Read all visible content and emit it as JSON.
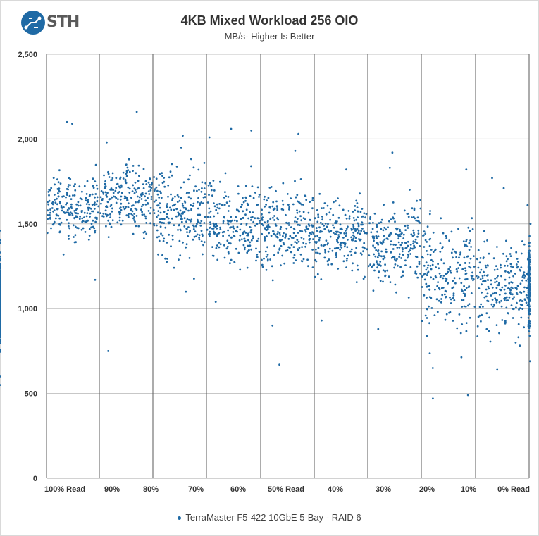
{
  "header": {
    "logo_text": "STH",
    "title": "4KB Mixed Workload  256 OIO",
    "subtitle": "MB/s- Higher Is Better"
  },
  "colors": {
    "series": "#1f6aa5",
    "grid": "#bfbfbf",
    "axis": "#a6a6a6"
  },
  "chart_data": {
    "type": "scatter",
    "title": "4KB Mixed Workload  256 OIO",
    "subtitle": "MB/s- Higher Is Better",
    "xlabel": "",
    "ylabel": "MB/s",
    "ylim": [
      0,
      2500
    ],
    "yticks": [
      0,
      500,
      1000,
      1500,
      2000,
      2500
    ],
    "ytick_labels": [
      "0",
      "500",
      "1,000",
      "1,500",
      "2,000",
      "2,500"
    ],
    "categories": [
      "100% Read",
      "90%",
      "80%",
      "70%",
      "60%",
      "50% Read",
      "40%",
      "30%",
      "20%",
      "10%",
      "0% Read"
    ],
    "grid": true,
    "legend_position": "bottom-center",
    "series": [
      {
        "name": "TerraMaster F5-422 10GbE 5-Bay - RAID 6",
        "segment_summaries": [
          {
            "category": "100% Read",
            "center": 1580,
            "spread": 130,
            "outliers": [
              2100,
              2090,
              1170
            ]
          },
          {
            "category": "90%",
            "center": 1640,
            "spread": 150,
            "outliers": [
              2160,
              1980,
              750
            ]
          },
          {
            "category": "80%",
            "center": 1560,
            "spread": 180,
            "outliers": [
              2020,
              1950,
              1100
            ]
          },
          {
            "category": "70%",
            "center": 1500,
            "spread": 170,
            "outliers": [
              2060,
              2050,
              2010,
              1040
            ]
          },
          {
            "category": "60%",
            "center": 1470,
            "spread": 170,
            "outliers": [
              2030,
              1930,
              670,
              900
            ]
          },
          {
            "category": "50% Read",
            "center": 1440,
            "spread": 150,
            "outliers": [
              1820,
              930
            ]
          },
          {
            "category": "40%",
            "center": 1400,
            "spread": 160,
            "outliers": [
              1920,
              1830,
              880
            ]
          },
          {
            "category": "30%",
            "center": 1220,
            "spread": 210,
            "outliers": [
              1820,
              470,
              490,
              650
            ]
          },
          {
            "category": "20%",
            "center": 1140,
            "spread": 180,
            "outliers": [
              1770,
              1710,
              640
            ]
          },
          {
            "category": "10%",
            "center": 1120,
            "spread": 170,
            "outliers": [
              1610,
              1500,
              690
            ]
          },
          {
            "category": "0% Read",
            "center": 1060,
            "spread": 170,
            "outliers": [
              1460,
              550,
              600
            ]
          }
        ]
      }
    ]
  },
  "legend": {
    "label": "TerraMaster F5-422 10GbE 5-Bay - RAID 6"
  }
}
